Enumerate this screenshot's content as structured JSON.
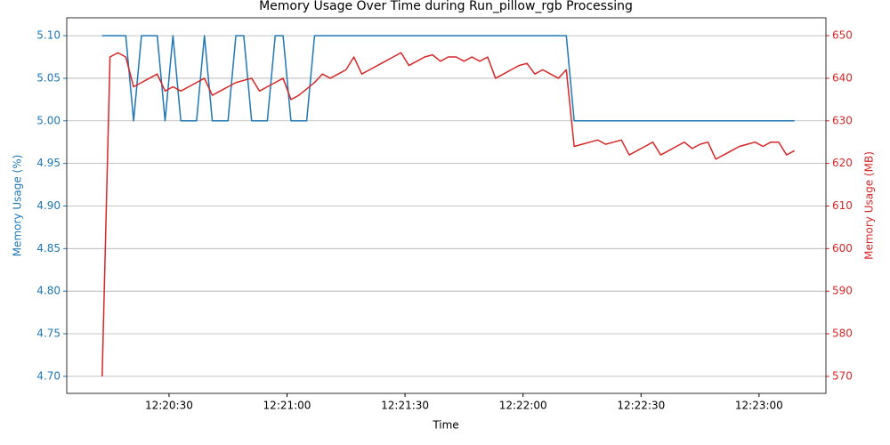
{
  "chart_data": {
    "type": "line",
    "title": "Memory Usage Over Time during Run_pillow_rgb Processing",
    "xlabel": "Time",
    "ylabel": "Memory Usage (%)",
    "y2label": "Memory Usage (MB)",
    "x": [
      "12:20:13",
      "12:20:15",
      "12:20:17",
      "12:20:19",
      "12:20:21",
      "12:20:23",
      "12:20:25",
      "12:20:27",
      "12:20:29",
      "12:20:31",
      "12:20:33",
      "12:20:35",
      "12:20:37",
      "12:20:39",
      "12:20:41",
      "12:20:43",
      "12:20:45",
      "12:20:47",
      "12:20:49",
      "12:20:51",
      "12:20:53",
      "12:20:55",
      "12:20:57",
      "12:20:59",
      "12:21:01",
      "12:21:03",
      "12:21:05",
      "12:21:07",
      "12:21:09",
      "12:21:11",
      "12:21:13",
      "12:21:15",
      "12:21:17",
      "12:21:19",
      "12:21:21",
      "12:21:23",
      "12:21:25",
      "12:21:27",
      "12:21:29",
      "12:21:31",
      "12:21:33",
      "12:21:35",
      "12:21:37",
      "12:21:39",
      "12:21:41",
      "12:21:43",
      "12:21:45",
      "12:21:47",
      "12:21:49",
      "12:21:51",
      "12:21:53",
      "12:21:55",
      "12:21:57",
      "12:21:59",
      "12:22:01",
      "12:22:03",
      "12:22:05",
      "12:22:07",
      "12:22:09",
      "12:22:11",
      "12:22:13",
      "12:22:15",
      "12:22:17",
      "12:22:19",
      "12:22:21",
      "12:22:23",
      "12:22:25",
      "12:22:27",
      "12:22:29",
      "12:22:31",
      "12:22:33",
      "12:22:35",
      "12:22:37",
      "12:22:39",
      "12:22:41",
      "12:22:43",
      "12:22:45",
      "12:22:47",
      "12:22:49",
      "12:22:51",
      "12:22:53",
      "12:22:55",
      "12:22:57",
      "12:22:59",
      "12:23:01",
      "12:23:03",
      "12:23:05",
      "12:23:07",
      "12:23:09"
    ],
    "xlim": [
      "12:20:04",
      "12:23:17"
    ],
    "xticks": [
      "12:20:30",
      "12:21:00",
      "12:21:30",
      "12:22:00",
      "12:22:30",
      "12:23:00"
    ],
    "series": [
      {
        "color": "#1f77b4",
        "axis": "y",
        "values": [
          5.1,
          5.1,
          5.1,
          5.1,
          5.0,
          5.1,
          5.1,
          5.1,
          5.0,
          5.1,
          5.0,
          5.0,
          5.0,
          5.1,
          5.0,
          5.0,
          5.0,
          5.1,
          5.1,
          5.0,
          5.0,
          5.0,
          5.1,
          5.1,
          5.0,
          5.0,
          5.0,
          5.1,
          5.1,
          5.1,
          5.1,
          5.1,
          5.1,
          5.1,
          5.1,
          5.1,
          5.1,
          5.1,
          5.1,
          5.1,
          5.1,
          5.1,
          5.1,
          5.1,
          5.1,
          5.1,
          5.1,
          5.1,
          5.1,
          5.1,
          5.1,
          5.1,
          5.1,
          5.1,
          5.1,
          5.1,
          5.1,
          5.1,
          5.1,
          5.1,
          5.0,
          5.0,
          5.0,
          5.0,
          5.0,
          5.0,
          5.0,
          5.0,
          5.0,
          5.0,
          5.0,
          5.0,
          5.0,
          5.0,
          5.0,
          5.0,
          5.0,
          5.0,
          5.0,
          5.0,
          5.0,
          5.0,
          5.0,
          5.0,
          5.0,
          5.0,
          5.0,
          5.0,
          5.0
        ]
      },
      {
        "color": "#d62728",
        "axis": "y2",
        "values": [
          570,
          645,
          646,
          645,
          638,
          639,
          640,
          641,
          637,
          638,
          637,
          638,
          639,
          640,
          636,
          637,
          638,
          639,
          639.5,
          640,
          637,
          638,
          639,
          640,
          635,
          636,
          637.5,
          639,
          641,
          640,
          641,
          642,
          645,
          641,
          642,
          643,
          644,
          645,
          646,
          643,
          644,
          645,
          645.5,
          644,
          645,
          645,
          644,
          645,
          644,
          645,
          640,
          641,
          642,
          643,
          643.5,
          641,
          642,
          641,
          640,
          642,
          624,
          624.5,
          625,
          625.5,
          624.5,
          625,
          625.5,
          622,
          623,
          624,
          625,
          622,
          623,
          624,
          625,
          623.5,
          624.5,
          625,
          621,
          622,
          623,
          624,
          624.5,
          625,
          624,
          625,
          625,
          622,
          623
        ]
      }
    ],
    "ylim": [
      4.68,
      5.121
    ],
    "yticks": [
      {
        "value": 4.7,
        "label": "4.70"
      },
      {
        "value": 4.75,
        "label": "4.75"
      },
      {
        "value": 4.8,
        "label": "4.80"
      },
      {
        "value": 4.85,
        "label": "4.85"
      },
      {
        "value": 4.9,
        "label": "4.90"
      },
      {
        "value": 4.95,
        "label": "4.95"
      },
      {
        "value": 5.0,
        "label": "5.00"
      },
      {
        "value": 5.05,
        "label": "5.05"
      },
      {
        "value": 5.1,
        "label": "5.10"
      }
    ],
    "y2lim": [
      566,
      654.2
    ],
    "y2ticks": [
      570,
      580,
      590,
      600,
      610,
      620,
      630,
      640,
      650
    ],
    "grid": "y2"
  }
}
